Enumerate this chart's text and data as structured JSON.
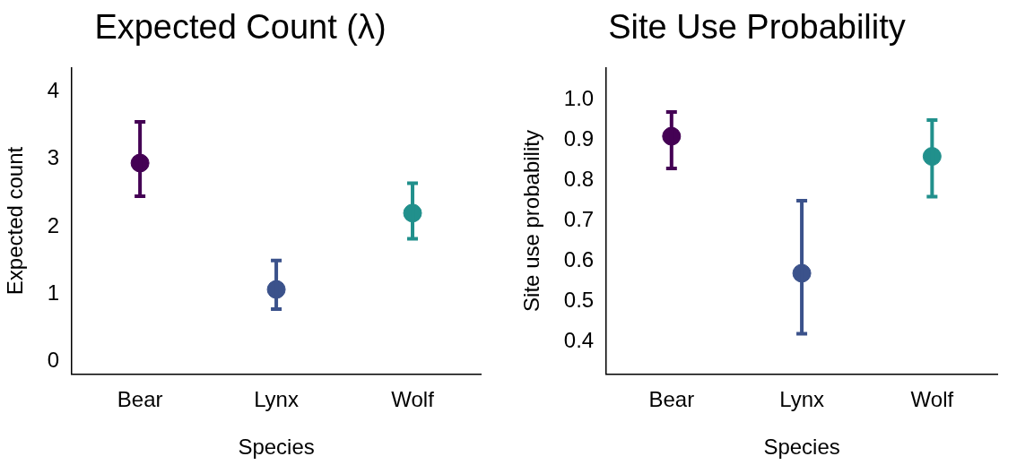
{
  "chart_data": [
    {
      "type": "scatter",
      "title": "Expected Count (λ)",
      "xlabel": "Species",
      "ylabel": "Expected count",
      "categories": [
        "Bear",
        "Lynx",
        "Wolf"
      ],
      "values": [
        2.94,
        1.07,
        2.2
      ],
      "colors": [
        "#440154",
        "#3b528b",
        "#21908c"
      ],
      "errors": [
        [
          2.45,
          3.55
        ],
        [
          0.78,
          1.5
        ],
        [
          1.82,
          2.64
        ]
      ],
      "ylim": [
        -0.18,
        4.35
      ],
      "yticks": [
        0,
        1,
        2,
        3,
        4
      ],
      "grid": false,
      "marker": "circle"
    },
    {
      "type": "scatter",
      "title": "Site Use Probability",
      "xlabel": "Species",
      "ylabel": "Site use probability",
      "categories": [
        "Bear",
        "Lynx",
        "Wolf"
      ],
      "values": [
        0.91,
        0.57,
        0.86
      ],
      "colors": [
        "#440154",
        "#3b528b",
        "#21908c"
      ],
      "errors": [
        [
          0.83,
          0.97
        ],
        [
          0.42,
          0.75
        ],
        [
          0.76,
          0.95
        ]
      ],
      "ylim": [
        0.32,
        1.08
      ],
      "yticks": [
        0.4,
        0.5,
        0.6,
        0.7,
        0.8,
        0.9,
        {
          "value": 1,
          "label": "1.0"
        }
      ],
      "grid": false,
      "marker": "circle"
    }
  ]
}
